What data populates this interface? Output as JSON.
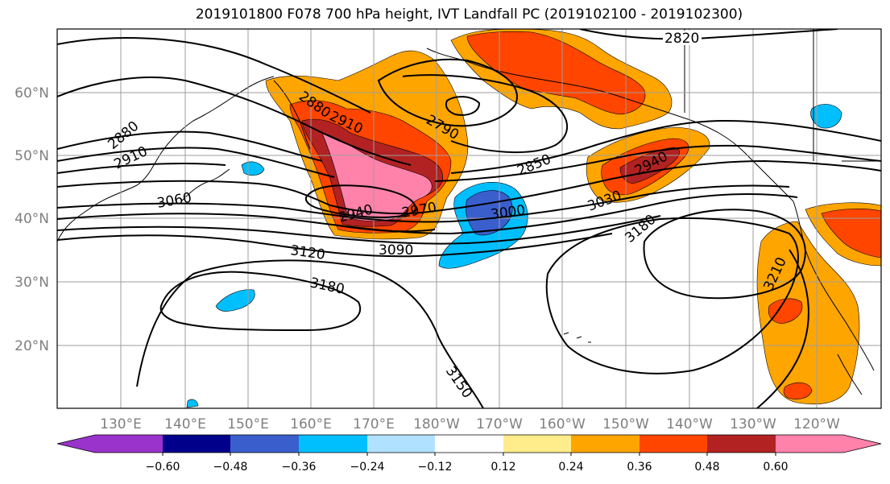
{
  "title": "2019101800 F078 700 hPa height, IVT Landfall PC (2019102100 - 2019102300)",
  "map": {
    "lon_labels": [
      "130°E",
      "140°E",
      "150°E",
      "160°E",
      "170°E",
      "180°W",
      "170°W",
      "160°W",
      "150°W",
      "140°W",
      "130°W",
      "120°W"
    ],
    "lat_labels": [
      "60°N",
      "50°N",
      "40°N",
      "30°N",
      "20°N"
    ],
    "gridlines": true
  },
  "contours": {
    "field": "700 hPa height",
    "labels": [
      "2820",
      "2880",
      "2910",
      "2790",
      "2880",
      "2910",
      "2850",
      "2940",
      "3060",
      "2940",
      "2970",
      "3000",
      "3030",
      "3180",
      "3120",
      "3090",
      "3180",
      "3210",
      "3150"
    ]
  },
  "shading": {
    "field": "IVT Landfall PC",
    "colors": {
      "purple": "#9933cc",
      "navy": "#00008b",
      "blue": "#3a5fcd",
      "cyan": "#00bfff",
      "lightblue": "#b0e2ff",
      "white": "#ffffff",
      "yellow": "#ffec8b",
      "orange": "#ffa500",
      "red": "#ff4500",
      "darkred": "#b22222",
      "pink": "#ff82ab"
    }
  },
  "colorbar": {
    "ticks": [
      "−0.60",
      "−0.48",
      "−0.36",
      "−0.24",
      "−0.12",
      "0.12",
      "0.24",
      "0.36",
      "0.48",
      "0.60"
    ],
    "bins": [
      "purple",
      "navy",
      "blue",
      "cyan",
      "lightblue",
      "white",
      "yellow",
      "orange",
      "red",
      "darkred",
      "pink"
    ]
  }
}
